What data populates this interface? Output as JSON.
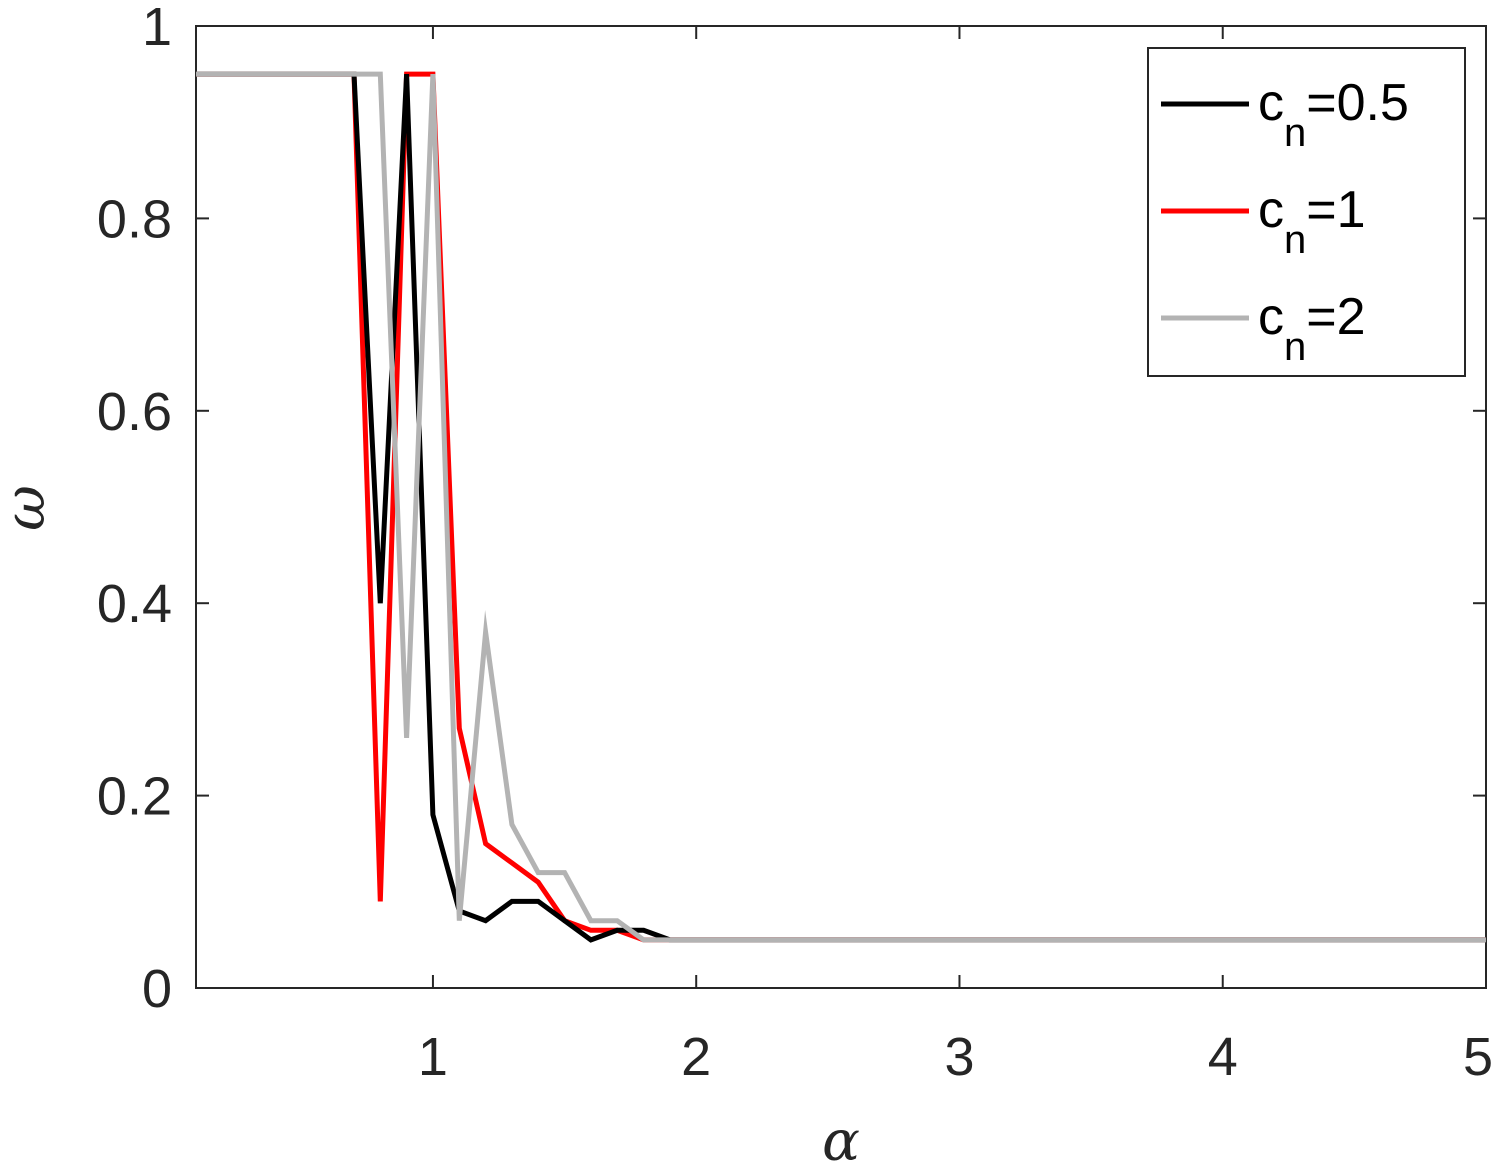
{
  "chart_data": {
    "type": "line",
    "xlabel": "α",
    "ylabel": "ω",
    "xlim": [
      0.1,
      5
    ],
    "ylim": [
      0,
      1
    ],
    "xticks": [
      1,
      2,
      3,
      4,
      5
    ],
    "xtick_labels": [
      "1",
      "2",
      "3",
      "4",
      "5"
    ],
    "yticks": [
      0,
      0.2,
      0.4,
      0.6,
      0.8,
      1
    ],
    "ytick_labels": [
      "0",
      "0.2",
      "0.4",
      "0.6",
      "0.8",
      "1"
    ],
    "grid": false,
    "legend_position": "top-right",
    "series": [
      {
        "name": "c_n=0.5",
        "color": "#000000",
        "x": [
          0.1,
          0.7,
          0.8,
          0.9,
          1.0,
          1.1,
          1.2,
          1.3,
          1.4,
          1.5,
          1.6,
          1.7,
          1.8,
          1.9,
          5.0
        ],
        "y": [
          0.95,
          0.95,
          0.4,
          0.95,
          0.18,
          0.08,
          0.07,
          0.09,
          0.09,
          0.07,
          0.05,
          0.06,
          0.06,
          0.05,
          0.05
        ]
      },
      {
        "name": "c_n=1",
        "color": "#ff0000",
        "x": [
          0.1,
          0.7,
          0.8,
          0.9,
          1.0,
          1.1,
          1.2,
          1.3,
          1.4,
          1.5,
          1.6,
          1.7,
          1.8,
          5.0
        ],
        "y": [
          0.95,
          0.95,
          0.09,
          0.95,
          0.95,
          0.27,
          0.15,
          0.13,
          0.11,
          0.07,
          0.06,
          0.06,
          0.05,
          0.05
        ]
      },
      {
        "name": "c_n=2",
        "color": "#b3b3b3",
        "x": [
          0.1,
          0.8,
          0.9,
          1.0,
          1.1,
          1.2,
          1.3,
          1.4,
          1.5,
          1.6,
          1.7,
          1.8,
          5.0
        ],
        "y": [
          0.95,
          0.95,
          0.26,
          0.95,
          0.07,
          0.37,
          0.17,
          0.12,
          0.12,
          0.07,
          0.07,
          0.05,
          0.05
        ]
      }
    ],
    "legend": [
      {
        "main": "c",
        "sub": "n",
        "rest": "=0.5"
      },
      {
        "main": "c",
        "sub": "n",
        "rest": "=1"
      },
      {
        "main": "c",
        "sub": "n",
        "rest": "=2"
      }
    ]
  }
}
